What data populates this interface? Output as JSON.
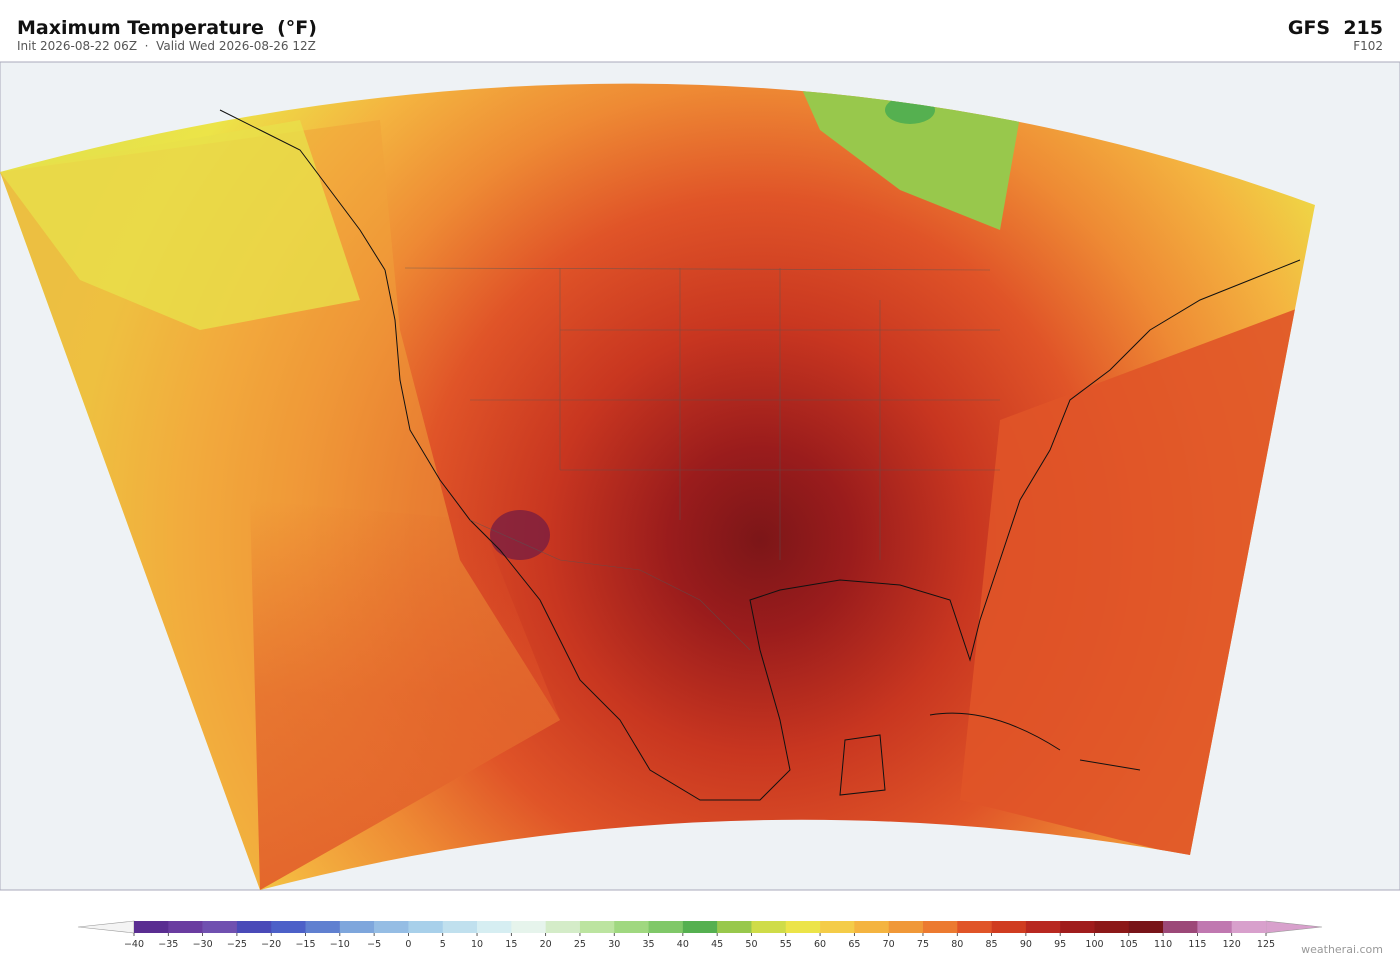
{
  "header": {
    "title": "Maximum Temperature  (°F)",
    "subtitle": "Init 2026-08-22 06Z  ·  Valid Wed 2026-08-26 12Z",
    "model": "GFS  215",
    "forecast_hour": "F102"
  },
  "colorbar": {
    "ticks": [
      {
        "value": -40,
        "label": "−40"
      },
      {
        "value": -35,
        "label": "−35"
      },
      {
        "value": -30,
        "label": "−30"
      },
      {
        "value": -25,
        "label": "−25"
      },
      {
        "value": -20,
        "label": "−20"
      },
      {
        "value": -15,
        "label": "−15"
      },
      {
        "value": -10,
        "label": "−10"
      },
      {
        "value": -5,
        "label": "−5"
      },
      0,
      5,
      10,
      15,
      20,
      25,
      30,
      35,
      40,
      45,
      50,
      55,
      60,
      65,
      70,
      75,
      80,
      85,
      90,
      95,
      100,
      105,
      110,
      115,
      120,
      125
    ],
    "colors": [
      "#5a2d91",
      "#6a3ca0",
      "#7050b0",
      "#4a4ab8",
      "#4c60c8",
      "#6080d0",
      "#7ea6dc",
      "#95bde4",
      "#a8d0ea",
      "#c0e0ee",
      "#d6eef2",
      "#e6f4ec",
      "#d4ecc8",
      "#bce4a0",
      "#a0d880",
      "#80c868",
      "#55b050",
      "#98c84c",
      "#cfdc48",
      "#ece448",
      "#f4cc48",
      "#f4b440",
      "#f09838",
      "#ec7a30",
      "#e05428",
      "#d03c20",
      "#b82820",
      "#a01c1c",
      "#8c1818",
      "#781418",
      "#9c4878",
      "#c078b0",
      "#d8a0cc"
    ]
  },
  "watermark": "weatherai.com"
}
